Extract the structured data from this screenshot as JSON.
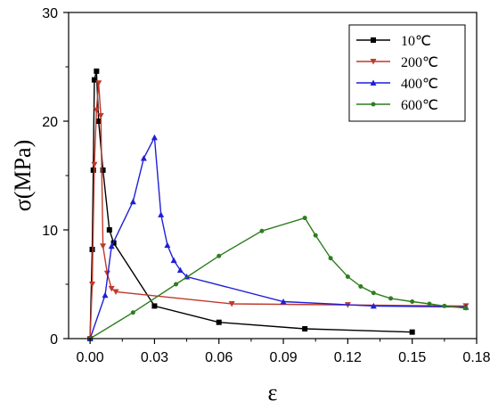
{
  "chart_data": {
    "type": "line",
    "title": "",
    "xlabel": "ε",
    "ylabel": "σ(MPa)",
    "xlim": [
      -0.01,
      0.18
    ],
    "ylim": [
      0,
      30
    ],
    "xticks": [
      0.0,
      0.03,
      0.06,
      0.09,
      0.12,
      0.15,
      0.18
    ],
    "xtick_labels": [
      "0.00",
      "0.03",
      "0.06",
      "0.09",
      "0.12",
      "0.15",
      "0.18"
    ],
    "yticks": [
      0,
      10,
      20,
      30
    ],
    "ytick_labels": [
      "0",
      "10",
      "20",
      "30"
    ],
    "grid": false,
    "legend_position": "top-right",
    "series": [
      {
        "name": "10℃",
        "color": "#000000",
        "marker": "square",
        "x": [
          0.0,
          0.001,
          0.0015,
          0.002,
          0.003,
          0.004,
          0.006,
          0.009,
          0.011,
          0.03,
          0.06,
          0.1,
          0.15
        ],
        "y": [
          0,
          8.2,
          15.5,
          23.8,
          24.6,
          20.0,
          15.5,
          10.0,
          8.8,
          3.0,
          1.5,
          0.9,
          0.6
        ]
      },
      {
        "name": "200℃",
        "color": "#c0392b",
        "marker": "triangle-down",
        "x": [
          0.0,
          0.001,
          0.002,
          0.003,
          0.004,
          0.005,
          0.006,
          0.008,
          0.01,
          0.012,
          0.066,
          0.12,
          0.175
        ],
        "y": [
          0,
          5.0,
          16.0,
          21.0,
          23.5,
          20.5,
          8.5,
          6.0,
          4.6,
          4.3,
          3.2,
          3.1,
          3.0
        ]
      },
      {
        "name": "400℃",
        "color": "#1f1fd6",
        "marker": "triangle-up",
        "x": [
          0.0,
          0.007,
          0.01,
          0.02,
          0.025,
          0.03,
          0.033,
          0.036,
          0.039,
          0.042,
          0.045,
          0.09,
          0.132,
          0.175
        ],
        "y": [
          0,
          4.0,
          8.5,
          12.6,
          16.6,
          18.5,
          11.4,
          8.6,
          7.2,
          6.3,
          5.7,
          3.4,
          3.0,
          2.9
        ]
      },
      {
        "name": "600℃",
        "color": "#2e7d1f",
        "marker": "circle",
        "x": [
          0.0,
          0.02,
          0.04,
          0.06,
          0.08,
          0.1,
          0.105,
          0.112,
          0.12,
          0.126,
          0.132,
          0.14,
          0.15,
          0.158,
          0.165,
          0.175
        ],
        "y": [
          0,
          2.4,
          5.0,
          7.6,
          9.9,
          11.1,
          9.5,
          7.4,
          5.7,
          4.8,
          4.2,
          3.7,
          3.4,
          3.2,
          3.0,
          2.8
        ]
      }
    ]
  }
}
